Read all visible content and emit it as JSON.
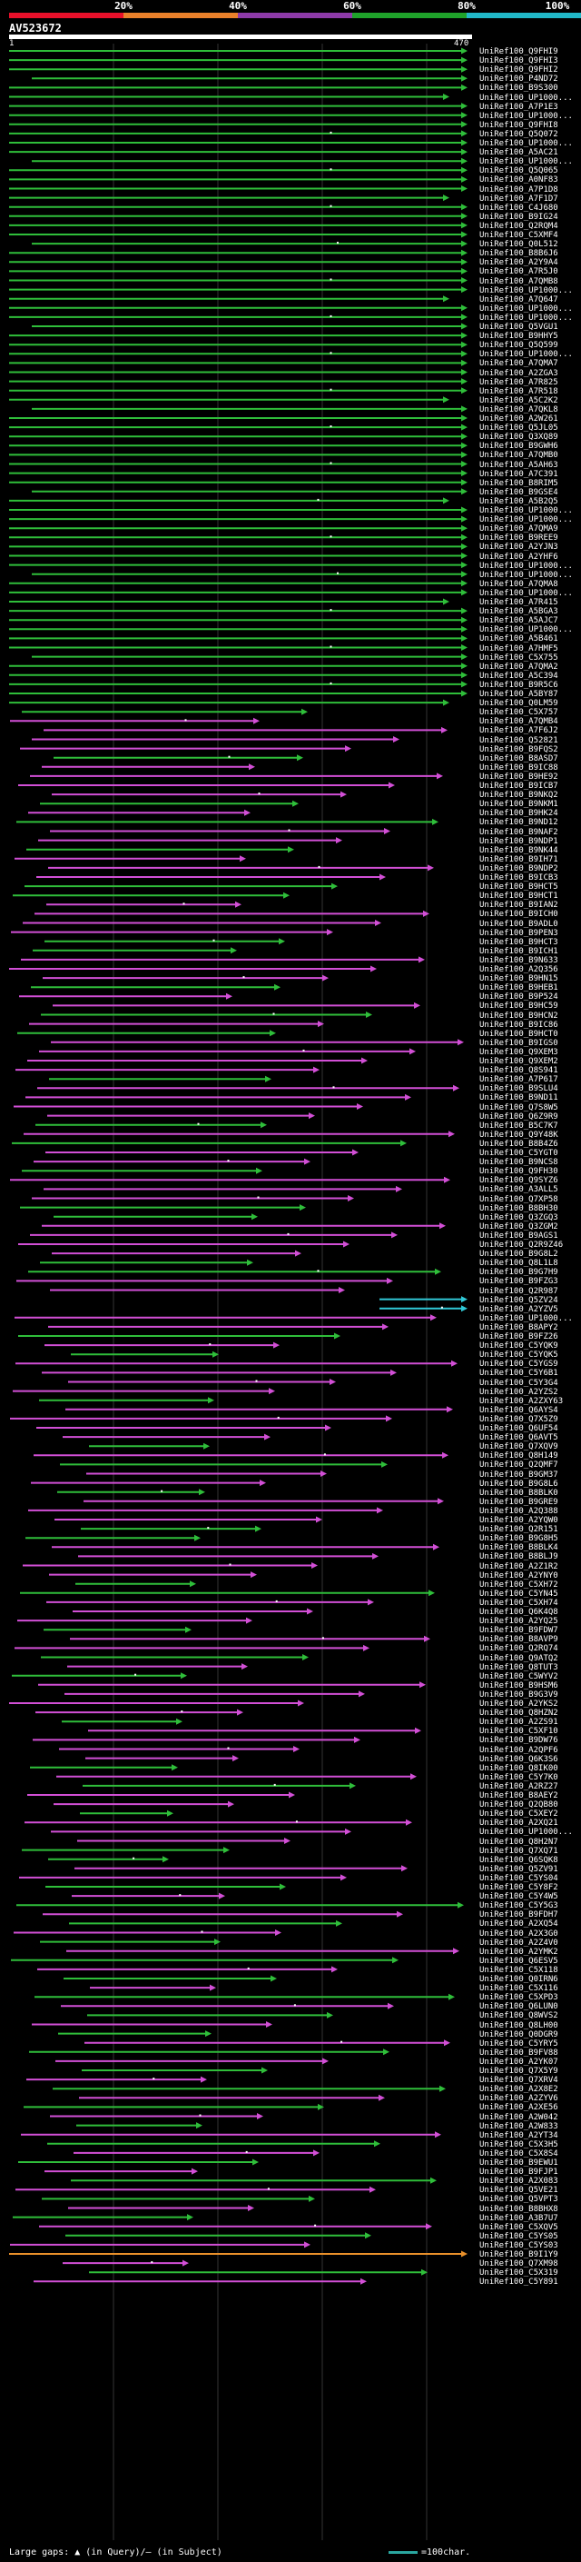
{
  "legend": {
    "labels": [
      "20%",
      "40%",
      "60%",
      "80%",
      "100%"
    ],
    "colors": [
      "#e8102a",
      "#e9802a",
      "#8d3aa8",
      "#1fa22a",
      "#21b8c8"
    ]
  },
  "query": {
    "name": "AV523672",
    "start": "1",
    "end": "470"
  },
  "footer": {
    "left_text": "Large gaps: ▲ (in Query)/— (in Subject)",
    "scale_text": "=100char."
  },
  "hits": [
    "UniRef100_Q9FHI9",
    "UniRef100_Q9FHI3",
    "UniRef100_Q9FHI2",
    "UniRef100_P4ND72",
    "UniRef100_B9S300",
    "UniRef100_UP1000...",
    "UniRef100_A7P1E3",
    "UniRef100_UP1000...",
    "UniRef100_Q9FHI8",
    "UniRef100_Q5Q072",
    "UniRef100_UP1000...",
    "UniRef100_A5AC21",
    "UniRef100_UP1000...",
    "UniRef100_Q5Q065",
    "UniRef100_A0NF83",
    "UniRef100_A7P1D8",
    "UniRef100_A7F1D7",
    "UniRef100_C4J680",
    "UniRef100_B9IG24",
    "UniRef100_Q2RQM4",
    "UniRef100_C5XMF4",
    "UniRef100_Q0L512",
    "UniRef100_B8B6J6",
    "UniRef100_A2Y9A4",
    "UniRef100_A7R5J0",
    "UniRef100_A7QMB8",
    "UniRef100_UP1000...",
    "UniRef100_A7Q647",
    "UniRef100_UP1000...",
    "UniRef100_UP1000...",
    "UniRef100_Q5VGU1",
    "UniRef100_B9HHY5",
    "UniRef100_Q5Q599",
    "UniRef100_UP1000...",
    "UniRef100_A7QMA7",
    "UniRef100_A2ZGA3",
    "UniRef100_A7R825",
    "UniRef100_A7R518",
    "UniRef100_A5C2K2",
    "UniRef100_A7QKL8",
    "UniRef100_A2W261",
    "UniRef100_Q5JL05",
    "UniRef100_Q3XQ89",
    "UniRef100_B9GWH6",
    "UniRef100_A7QMB0",
    "UniRef100_A5AH63",
    "UniRef100_A7C391",
    "UniRef100_B8RIM5",
    "UniRef100_B9GSE4",
    "UniRef100_A5B2Q5",
    "UniRef100_UP1000...",
    "UniRef100_UP1000...",
    "UniRef100_A7QMA9",
    "UniRef100_B9REE9",
    "UniRef100_A2YJN3",
    "UniRef100_A2YHF6",
    "UniRef100_UP1000...",
    "UniRef100_UP1000...",
    "UniRef100_A7QMA8",
    "UniRef100_UP1000...",
    "UniRef100_A7R415",
    "UniRef100_A5BGA3",
    "UniRef100_A5AJC7",
    "UniRef100_UP1000...",
    "UniRef100_A5B461",
    "UniRef100_A7HMF5",
    "UniRef100_C5X755",
    "UniRef100_A7QMA2",
    "UniRef100_A5C394",
    "UniRef100_B9R5C6",
    "UniRef100_A5BY87",
    "UniRef100_Q0LM59",
    "UniRef100_C5X757",
    "UniRef100_A7QMB4",
    "UniRef100_A7F6J2",
    "UniRef100_Q52821",
    "UniRef100_B9FQS2",
    "UniRef100_B8ASD7",
    "UniRef100_B9IC88",
    "UniRef100_B9HE92",
    "UniRef100_B9ICB7",
    "UniRef100_B9NKQ2",
    "UniRef100_B9NKM1",
    "UniRef100_B9HK24",
    "UniRef100_B9ND12",
    "UniRef100_B9NAF2",
    "UniRef100_B9NDP1",
    "UniRef100_B9NK44",
    "UniRef100_B9IH71",
    "UniRef100_B9NDP2",
    "UniRef100_B9ICB3",
    "UniRef100_B9HCT5",
    "UniRef100_B9HCT1",
    "UniRef100_B9IAN2",
    "UniRef100_B9ICH0",
    "UniRef100_B9ADL0",
    "UniRef100_B9PEN3",
    "UniRef100_B9HCT3",
    "UniRef100_B9ICH1",
    "UniRef100_B9N633",
    "UniRef100_A2Q356",
    "UniRef100_B9HN15",
    "UniRef100_B9HEB1",
    "UniRef100_B9P524",
    "UniRef100_B9HC59",
    "UniRef100_B9HCN2",
    "UniRef100_B9IC86",
    "UniRef100_B9HCT0",
    "UniRef100_B9IGS0",
    "UniRef100_Q9XEM3",
    "UniRef100_Q9XEM2",
    "UniRef100_Q8S941",
    "UniRef100_A7P617",
    "UniRef100_B9SLU4",
    "UniRef100_B9ND11",
    "UniRef100_Q7S8W5",
    "UniRef100_Q6Z9R9",
    "UniRef100_B5C7K7",
    "UniRef100_Q9Y48K",
    "UniRef100_B8B4Z6",
    "UniRef100_C5YGT0",
    "UniRef100_B9NCS8",
    "UniRef100_Q9FH30",
    "UniRef100_Q9SYZ6",
    "UniRef100_A3ALL5",
    "UniRef100_Q7XP58",
    "UniRef100_B8BH30",
    "UniRef100_Q3ZGQ3",
    "UniRef100_Q3ZGM2",
    "UniRef100_B9AGS1",
    "UniRef100_Q2R9Z46",
    "UniRef100_B9G8L2",
    "UniRef100_Q8L1L8",
    "UniRef100_B9G7H9",
    "UniRef100_B9FZG3",
    "UniRef100_Q2R987",
    "UniRef100_Q5ZV24",
    "UniRef100_A2YZV5",
    "UniRef100_UP1000...",
    "UniRef100_B8APY2",
    "UniRef100_B9FZ26",
    "UniRef100_C5YQK9",
    "UniRef100_C5YQK5",
    "UniRef100_C5YGS9",
    "UniRef100_C5Y6B1",
    "UniRef100_C5Y3G4",
    "UniRef100_A2YZS2",
    "UniRef100_A2ZXY63",
    "UniRef100_Q6AYS4",
    "UniRef100_Q7X5Z9",
    "UniRef100_Q6UF54",
    "UniRef100_Q6AVT5",
    "UniRef100_Q7XQV9",
    "UniRef100_Q8H149",
    "UniRef100_Q2QMF7",
    "UniRef100_B9GM37",
    "UniRef100_B9G8L6",
    "UniRef100_B8BLK0",
    "UniRef100_B9GRE9",
    "UniRef100_A2Q388",
    "UniRef100_A2YQW0",
    "UniRef100_Q2R151",
    "UniRef100_B9G8H5",
    "UniRef100_B8BLK4",
    "UniRef100_B8BLJ9",
    "UniRef100_A2Z1R2",
    "UniRef100_A2YNY0",
    "UniRef100_C5XH72",
    "UniRef100_C5YN45",
    "UniRef100_C5XH74",
    "UniRef100_Q6K4Q8",
    "UniRef100_A2YQ25",
    "UniRef100_B9FDW7",
    "UniRef100_B8AVP9",
    "UniRef100_Q2RQ74",
    "UniRef100_Q9ATQ2",
    "UniRef100_Q8TUT3",
    "UniRef100_C5WYV2",
    "UniRef100_B9HSM6",
    "UniRef100_B9G3V9",
    "UniRef100_A2YKS2",
    "UniRef100_Q8HZN2",
    "UniRef100_A2ZS91",
    "UniRef100_C5XF10",
    "UniRef100_B9DW76",
    "UniRef100_A2QPF6",
    "UniRef100_Q6K3S6",
    "UniRef100_Q8IK00",
    "UniRef100_C5Y7K0",
    "UniRef100_A2RZ27",
    "UniRef100_B8AEY2",
    "UniRef100_Q2QB80",
    "UniRef100_C5XEY2",
    "UniRef100_A2XQ21",
    "UniRef100_UP1000...",
    "UniRef100_Q8H2N7",
    "UniRef100_Q7XQ71",
    "UniRef100_Q6SQK8",
    "UniRef100_Q5ZV91",
    "UniRef100_C5YS04",
    "UniRef100_C5Y8F2",
    "UniRef100_C5Y4W5",
    "UniRef100_C5Y5G3",
    "UniRef100_B9FDH7",
    "UniRef100_A2XQ54",
    "UniRef100_A2X3G0",
    "UniRef100_A2Z4V0",
    "UniRef100_A2YMK2",
    "UniRef100_Q6ESV5",
    "UniRef100_C5X118",
    "UniRef100_Q0IRN6",
    "UniRef100_C5X116",
    "UniRef100_C5XPD3",
    "UniRef100_Q6LUN0",
    "UniRef100_Q8WVS2",
    "UniRef100_Q8LH00",
    "UniRef100_Q0DGR9",
    "UniRef100_C5YRY5",
    "UniRef100_B9FV88",
    "UniRef100_A2YK07",
    "UniRef100_Q7X5Y9",
    "UniRef100_Q7XRV4",
    "UniRef100_A2X8E2",
    "UniRef100_A2ZYV6",
    "UniRef100_A2XE56",
    "UniRef100_A2W042",
    "UniRef100_A2W833",
    "UniRef100_A2YT34",
    "UniRef100_C5X3H5",
    "UniRef100_C5X8S4",
    "UniRef100_B9EWU1",
    "UniRef100_B9FJP1",
    "UniRef100_A2X083",
    "UniRef100_Q5VE21",
    "UniRef100_Q5VPT3",
    "UniRef100_B8BHX8",
    "UniRef100_A3B7U7",
    "UniRef100_C5XQV5",
    "UniRef100_C5YS05",
    "UniRef100_C5YS03",
    "UniRef100_B9I1Y9",
    "UniRef100_Q7XM98",
    "UniRef100_C5X319",
    "UniRef100_C5Y891"
  ]
}
